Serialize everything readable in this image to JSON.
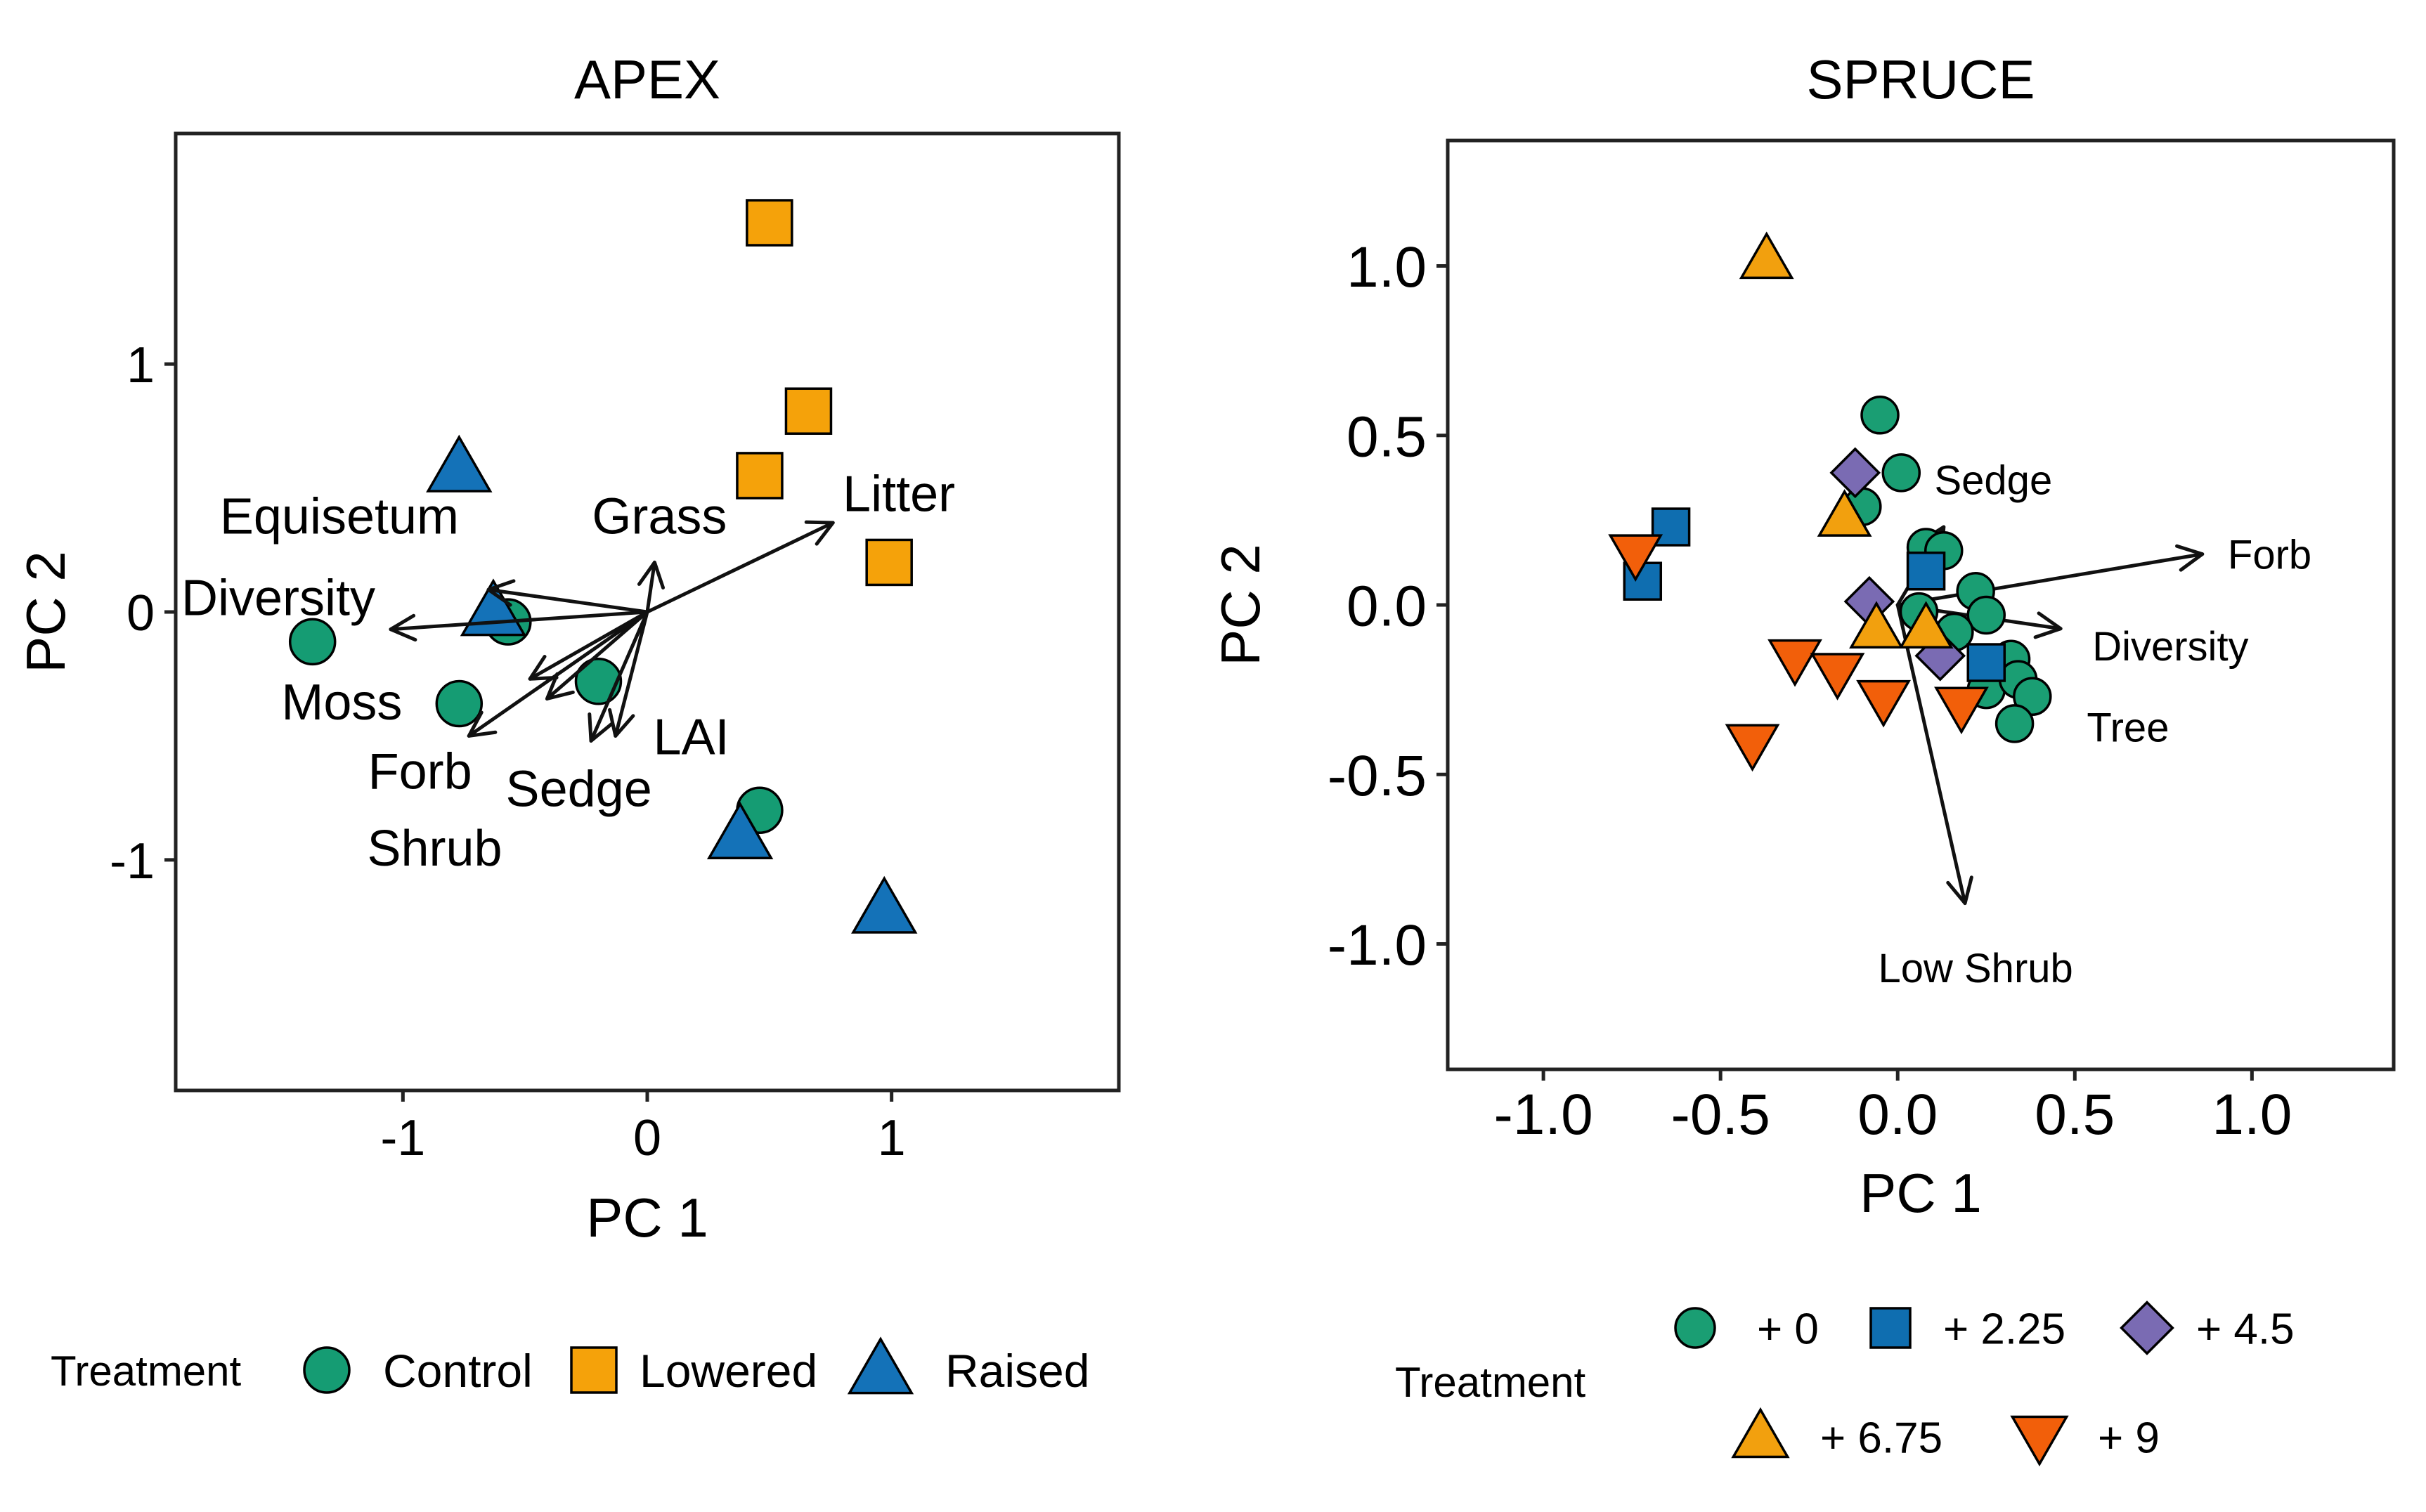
{
  "colors": {
    "control": "#159C73",
    "lowered": "#F5A20A",
    "raised": "#1472B8",
    "p0": "#1A9E73",
    "p225": "#0F6EB0",
    "p45": "#7A6BB3",
    "p675": "#F2A00E",
    "p9": "#F25F0A",
    "arrow": "#111111",
    "frame": "#222222"
  },
  "chart_data": [
    {
      "type": "scatter",
      "title": "APEX",
      "xlabel": "PC 1",
      "ylabel": "PC 2",
      "xlim": [
        -1.93,
        1.93
      ],
      "ylim": [
        -1.93,
        1.93
      ],
      "xticks": [
        {
          "value": -1,
          "label": "-1"
        },
        {
          "value": 0,
          "label": "0"
        },
        {
          "value": 1,
          "label": "1"
        }
      ],
      "yticks": [
        {
          "value": -1,
          "label": "-1"
        },
        {
          "value": 0,
          "label": "0"
        },
        {
          "value": 1,
          "label": "1"
        }
      ],
      "series": [
        {
          "name": "Control",
          "shape": "circle",
          "color_key": "control",
          "points": [
            [
              -1.37,
              -0.12
            ],
            [
              -0.57,
              -0.04
            ],
            [
              -0.77,
              -0.37
            ],
            [
              -0.2,
              -0.28
            ],
            [
              0.46,
              -0.8
            ]
          ]
        },
        {
          "name": "Lowered",
          "shape": "square",
          "color_key": "lowered",
          "points": [
            [
              0.5,
              1.57
            ],
            [
              0.66,
              0.81
            ],
            [
              0.46,
              0.55
            ],
            [
              0.99,
              0.2
            ]
          ]
        },
        {
          "name": "Raised",
          "shape": "triangle-up",
          "color_key": "raised",
          "points": [
            [
              -0.77,
              0.58
            ],
            [
              -0.63,
              0.0
            ],
            [
              0.38,
              -0.9
            ],
            [
              0.97,
              -1.2
            ]
          ]
        }
      ],
      "vectors": [
        {
          "name": "Equisetum",
          "end": [
            -0.65,
            0.09
          ]
        },
        {
          "name": "Diversity",
          "end": [
            -1.05,
            -0.07
          ]
        },
        {
          "name": "Moss",
          "end": [
            -0.48,
            -0.27
          ]
        },
        {
          "name": "Forb",
          "end": [
            -0.73,
            -0.5
          ]
        },
        {
          "name": "Shrub",
          "end": [
            -0.41,
            -0.35
          ]
        },
        {
          "name": "Sedge",
          "end": [
            -0.23,
            -0.52
          ]
        },
        {
          "name": "LAI",
          "end": [
            -0.13,
            -0.5
          ]
        },
        {
          "name": "Grass",
          "end": [
            0.03,
            0.2
          ]
        },
        {
          "name": "Litter",
          "end": [
            0.76,
            0.36
          ]
        }
      ],
      "vector_labels": [
        {
          "text": "Equisetum",
          "at": [
            -1.26,
            0.39
          ]
        },
        {
          "text": "Diversity",
          "at": [
            -1.51,
            0.06
          ]
        },
        {
          "text": "Moss",
          "at": [
            -1.25,
            -0.36
          ]
        },
        {
          "text": "Forb",
          "at": [
            -0.93,
            -0.64
          ]
        },
        {
          "text": "Shrub",
          "at": [
            -0.87,
            -0.95
          ]
        },
        {
          "text": "Sedge",
          "at": [
            -0.28,
            -0.71
          ]
        },
        {
          "text": "LAI",
          "at": [
            0.18,
            -0.5
          ]
        },
        {
          "text": "Grass",
          "at": [
            0.05,
            0.39
          ]
        },
        {
          "text": "Litter",
          "at": [
            1.03,
            0.48
          ]
        }
      ]
    },
    {
      "type": "scatter",
      "title": "SPRUCE",
      "xlabel": "PC 1",
      "ylabel": "PC 2",
      "xlim": [
        -1.27,
        1.4
      ],
      "ylim": [
        -1.37,
        1.37
      ],
      "xticks": [
        {
          "value": -1.0,
          "label": "-1.0"
        },
        {
          "value": -0.5,
          "label": "-0.5"
        },
        {
          "value": 0.0,
          "label": "0.0"
        },
        {
          "value": 0.5,
          "label": "0.5"
        },
        {
          "value": 1.0,
          "label": "1.0"
        }
      ],
      "yticks": [
        {
          "value": -1.0,
          "label": "-1.0"
        },
        {
          "value": -0.5,
          "label": "-0.5"
        },
        {
          "value": 0.0,
          "label": "0.0"
        },
        {
          "value": 0.5,
          "label": "0.5"
        },
        {
          "value": 1.0,
          "label": "1.0"
        }
      ],
      "series": [
        {
          "name": "+ 0",
          "shape": "circle",
          "color_key": "p0",
          "points": [
            [
              -0.05,
              0.56
            ],
            [
              0.01,
              0.39
            ],
            [
              -0.1,
              0.29
            ],
            [
              0.08,
              0.17
            ],
            [
              0.13,
              0.16
            ],
            [
              0.22,
              0.04
            ],
            [
              0.25,
              -0.03
            ],
            [
              0.16,
              -0.08
            ],
            [
              0.32,
              -0.16
            ],
            [
              0.25,
              -0.25
            ],
            [
              0.34,
              -0.22
            ],
            [
              0.38,
              -0.27
            ],
            [
              0.33,
              -0.35
            ],
            [
              0.06,
              -0.02
            ]
          ]
        },
        {
          "name": "+ 2.25",
          "shape": "square",
          "color_key": "p225",
          "points": [
            [
              -0.64,
              0.23
            ],
            [
              -0.72,
              0.07
            ],
            [
              0.08,
              0.1
            ],
            [
              0.25,
              -0.17
            ]
          ]
        },
        {
          "name": "+ 4.5",
          "shape": "diamond",
          "color_key": "p45",
          "points": [
            [
              -0.12,
              0.39
            ],
            [
              -0.08,
              0.01
            ],
            [
              0.12,
              -0.15
            ]
          ]
        },
        {
          "name": "+ 6.75",
          "shape": "triangle-up",
          "color_key": "p675",
          "points": [
            [
              -0.37,
              1.02
            ],
            [
              -0.15,
              0.26
            ],
            [
              -0.06,
              -0.07
            ],
            [
              0.08,
              -0.07
            ]
          ]
        },
        {
          "name": "+ 9",
          "shape": "triangle-down",
          "color_key": "p9",
          "points": [
            [
              -0.74,
              0.15
            ],
            [
              -0.29,
              -0.16
            ],
            [
              -0.17,
              -0.2
            ],
            [
              -0.04,
              -0.28
            ],
            [
              0.18,
              -0.3
            ],
            [
              -0.41,
              -0.41
            ]
          ]
        }
      ],
      "vectors": [
        {
          "name": "Sedge",
          "end": [
            0.13,
            0.23
          ]
        },
        {
          "name": "Forb",
          "end": [
            0.86,
            0.15
          ]
        },
        {
          "name": "Diversity",
          "end": [
            0.46,
            -0.07
          ]
        },
        {
          "name": "Tree",
          "end": [
            0.38,
            -0.22
          ]
        },
        {
          "name": "Low Shrub",
          "end": [
            0.19,
            -0.88
          ]
        }
      ],
      "vector_labels": [
        {
          "text": "Sedge",
          "at": [
            0.27,
            0.37
          ]
        },
        {
          "text": "Forb",
          "at": [
            1.05,
            0.15
          ]
        },
        {
          "text": "Diversity",
          "at": [
            0.77,
            -0.12
          ]
        },
        {
          "text": "Tree",
          "at": [
            0.65,
            -0.36
          ]
        },
        {
          "text": "Low Shrub",
          "at": [
            0.22,
            -1.07
          ]
        }
      ]
    }
  ],
  "legend_apex": {
    "title": "Treatment",
    "items": [
      {
        "label": "Control",
        "shape": "circle",
        "color_key": "control"
      },
      {
        "label": "Lowered",
        "shape": "square",
        "color_key": "lowered"
      },
      {
        "label": "Raised",
        "shape": "triangle-up",
        "color_key": "raised"
      }
    ]
  },
  "legend_spruce": {
    "title": "Treatment",
    "items": [
      {
        "label": "+ 0",
        "shape": "circle",
        "color_key": "p0"
      },
      {
        "label": "+ 2.25",
        "shape": "square",
        "color_key": "p225"
      },
      {
        "label": "+ 4.5",
        "shape": "diamond",
        "color_key": "p45"
      },
      {
        "label": "+ 6.75",
        "shape": "triangle-up",
        "color_key": "p675"
      },
      {
        "label": "+ 9",
        "shape": "triangle-down",
        "color_key": "p9"
      }
    ]
  }
}
